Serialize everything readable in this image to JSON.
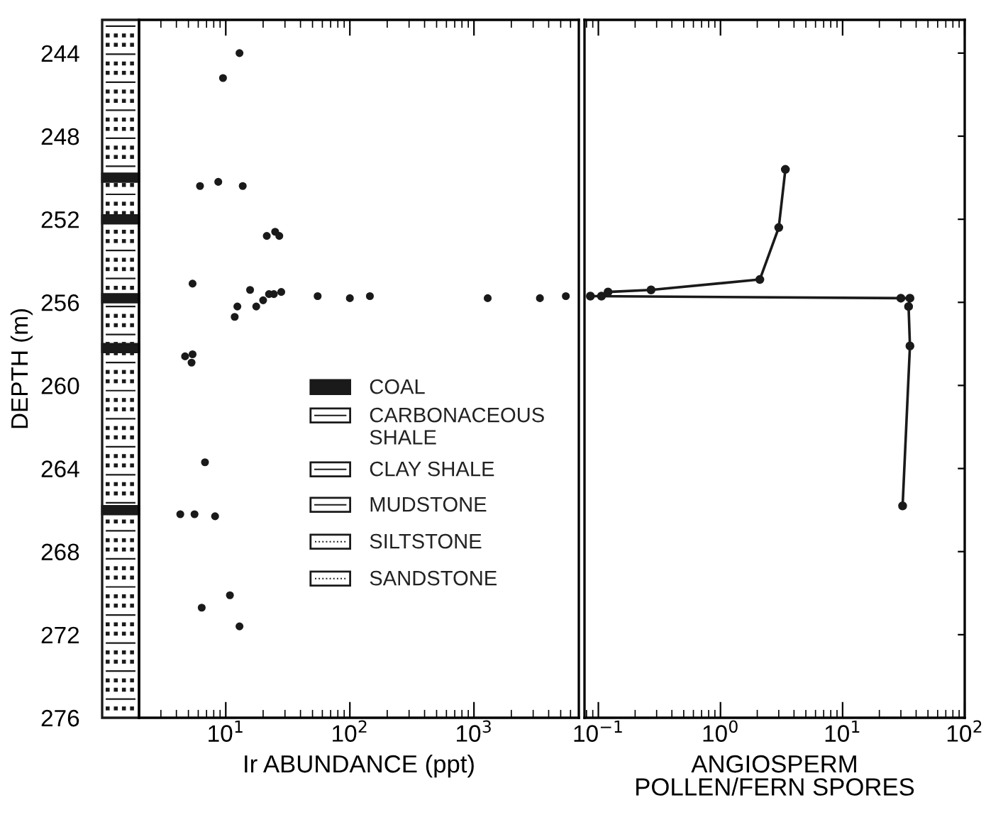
{
  "chart_data": [
    {
      "type": "scatter",
      "xlabel": "Ir ABUNDANCE (ppt)",
      "ylabel": "DEPTH (m)",
      "x": [
        12.9,
        9.5,
        6.2,
        8.7,
        13.7,
        21.4,
        25,
        27,
        5.4,
        15.7,
        22.3,
        24.4,
        28,
        12.4,
        11.8,
        17.6,
        20,
        55,
        100,
        145,
        1290,
        3400,
        5500,
        4.7,
        5.4,
        5.3,
        6.8,
        4.3,
        5.6,
        8.2,
        10.8,
        6.4,
        12.9
      ],
      "values": [
        244.0,
        245.2,
        250.4,
        250.2,
        250.4,
        252.8,
        252.6,
        252.8,
        255.1,
        255.4,
        255.6,
        255.6,
        255.5,
        256.2,
        256.7,
        256.2,
        255.9,
        255.7,
        255.8,
        255.7,
        255.8,
        255.8,
        255.7,
        258.6,
        258.5,
        258.9,
        263.7,
        266.2,
        266.2,
        266.3,
        270.1,
        270.7,
        271.6
      ],
      "color": "#1a1a1a",
      "marker": "circle",
      "log": "x",
      "xlim": [
        2,
        7000
      ],
      "xticks": [
        {
          "value": 10,
          "label": "10$^{1}$"
        },
        {
          "value": 100,
          "label": "10$^{2}$"
        },
        {
          "value": 1000,
          "label": "10$^{3}$"
        }
      ],
      "ylim": [
        276,
        242.4
      ],
      "yticks": [
        244,
        248,
        252,
        256,
        260,
        264,
        268,
        272,
        276
      ],
      "annotations": [
        "COAL",
        "CARBONACEOUS\nSHALE",
        "CLAY SHALE",
        "MUDSTONE",
        "SILTSTONE",
        "SANDSTONE"
      ]
    },
    {
      "type": "line",
      "xlabel": "ANGIOSPERM\nPOLLEN/FERN SPORES",
      "x": [
        3.4,
        3.0,
        2.1,
        0.27,
        0.12,
        0.106,
        0.086,
        30,
        35.6,
        34.7,
        35.6,
        31
      ],
      "values": [
        249.6,
        252.4,
        254.9,
        255.4,
        255.5,
        255.7,
        255.7,
        255.8,
        255.8,
        256.2,
        258.1,
        265.8
      ],
      "color": "#1a1a1a",
      "marker": "circle",
      "line_style": "solid",
      "log": "x",
      "xlim": [
        0.077,
        100
      ],
      "xticks": [
        {
          "value": 0.1,
          "label": "10$^{−1}$"
        },
        {
          "value": 1,
          "label": "10$^{0}$"
        },
        {
          "value": 10,
          "label": "10$^{1}$"
        },
        {
          "value": 100,
          "label": "10$^{2}$"
        }
      ],
      "ylim": [
        276,
        242.4
      ],
      "yticks": [
        244,
        248,
        252,
        256,
        260,
        264,
        268,
        272,
        276
      ],
      "tick_labels": "x"
    }
  ]
}
